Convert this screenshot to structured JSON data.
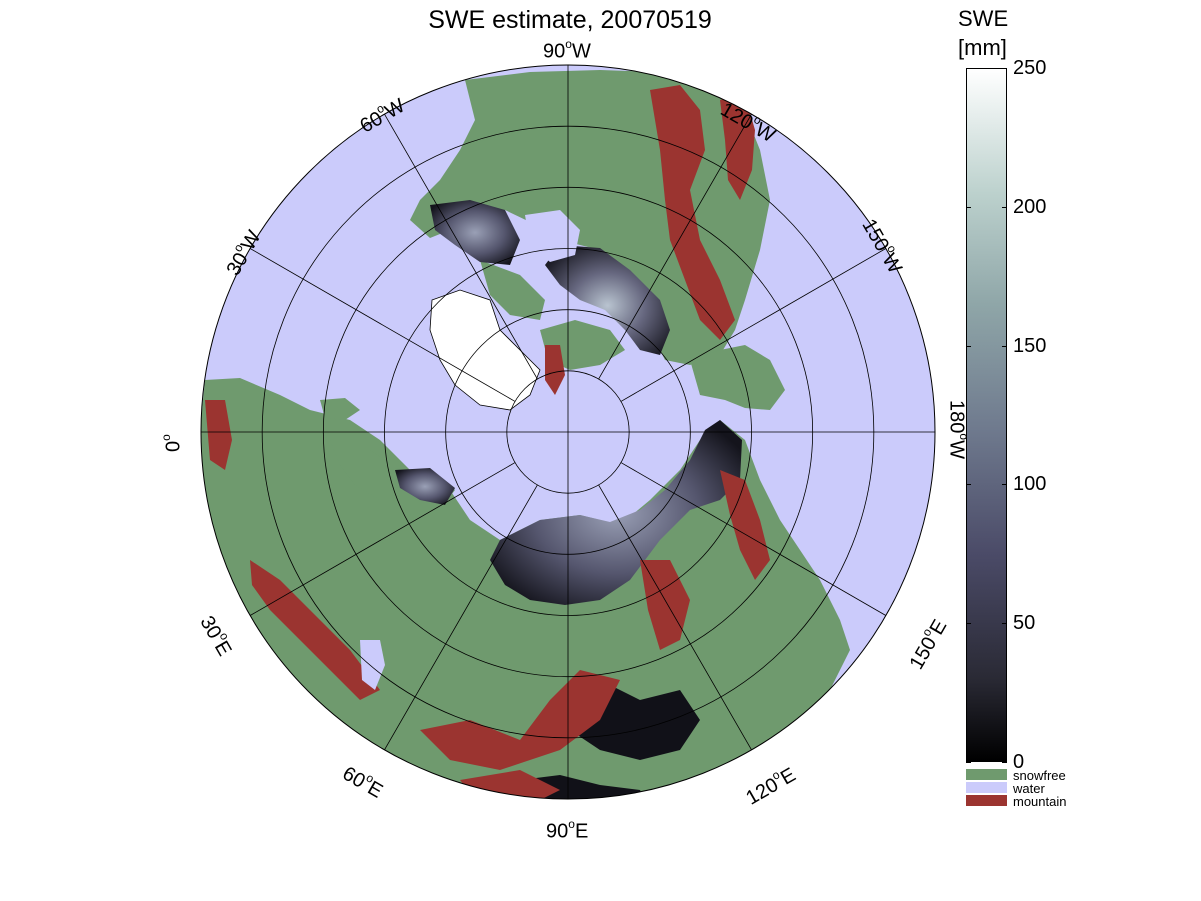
{
  "title": "SWE estimate, 20070519",
  "longitude_labels": [
    {
      "id": "lon-90w",
      "text": "90",
      "suffix": "W"
    },
    {
      "id": "lon-120w",
      "text": "120",
      "suffix": "W"
    },
    {
      "id": "lon-150w",
      "text": "150",
      "suffix": "W"
    },
    {
      "id": "lon-180w",
      "text": "180",
      "suffix": "W"
    },
    {
      "id": "lon-150e",
      "text": "150",
      "suffix": "E"
    },
    {
      "id": "lon-120e",
      "text": "120",
      "suffix": "E"
    },
    {
      "id": "lon-90e",
      "text": "90",
      "suffix": "E"
    },
    {
      "id": "lon-60e",
      "text": "60",
      "suffix": "E"
    },
    {
      "id": "lon-30e",
      "text": "30",
      "suffix": "E"
    },
    {
      "id": "lon-0",
      "text": "0",
      "suffix": ""
    },
    {
      "id": "lon-30w",
      "text": "30",
      "suffix": "W"
    },
    {
      "id": "lon-60w",
      "text": "60",
      "suffix": "W"
    }
  ],
  "colorbar": {
    "title_line1": "SWE",
    "title_line2": "[mm]",
    "ticks": [
      "250",
      "200",
      "150",
      "100",
      "50",
      "0"
    ],
    "tick_values": [
      250,
      200,
      150,
      100,
      50,
      0
    ],
    "range": [
      0,
      250
    ]
  },
  "categories": [
    {
      "label": "snowfree",
      "color": "#6f9a6e"
    },
    {
      "label": "water",
      "color": "#cbcbfb"
    },
    {
      "label": "mountain",
      "color": "#9b3430"
    }
  ],
  "colors": {
    "water": "#cbcbfb",
    "land": "#6f9a6e",
    "mountain": "#9b3430",
    "snow_dark": "#1a1a24",
    "snow_mid": "#5a5a78",
    "grid": "#000000"
  }
}
